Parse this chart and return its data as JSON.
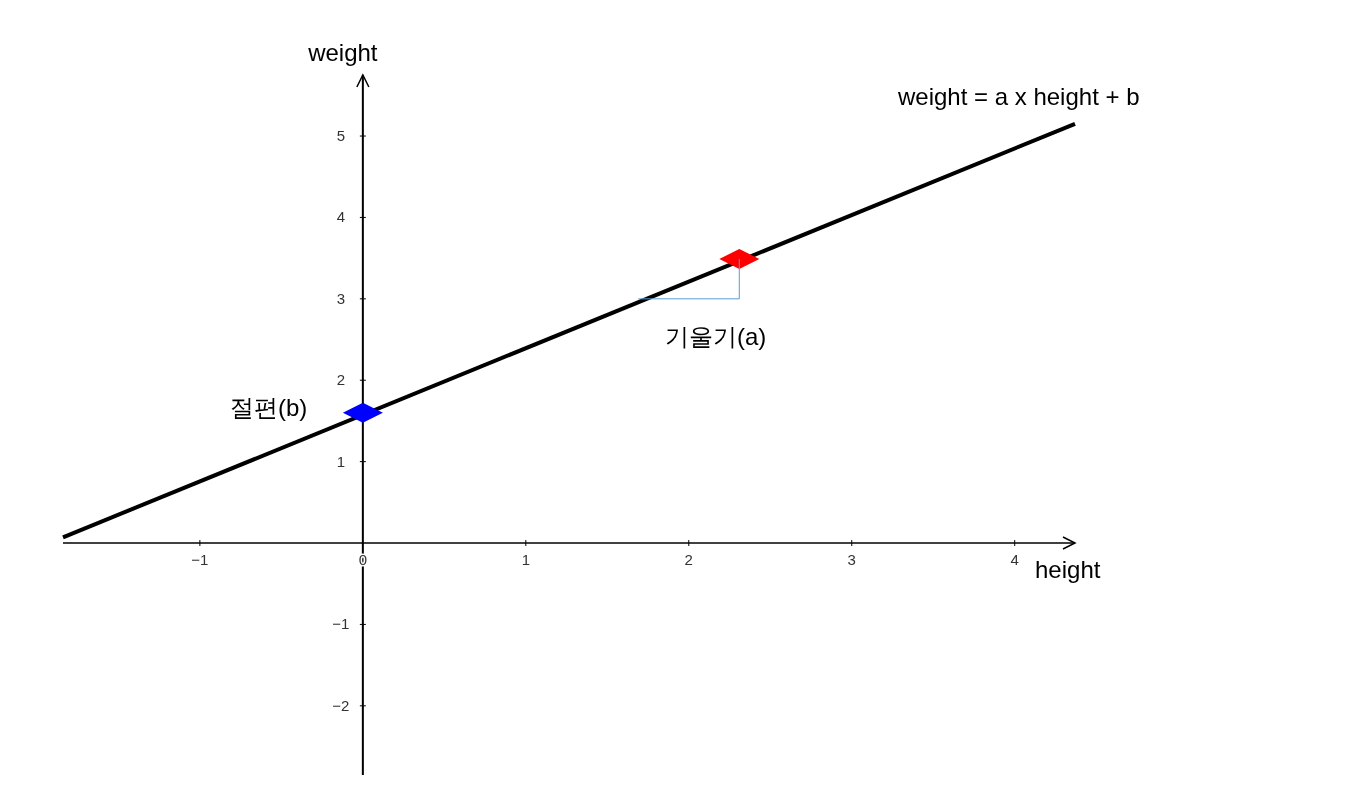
{
  "chart_data": {
    "type": "line",
    "xlabel": "height",
    "ylabel": "weight",
    "xlim": [
      -1.84,
      4.37
    ],
    "ylim": [
      -2.85,
      5.75
    ],
    "xticks": [
      {
        "value": -1,
        "label": "−1"
      },
      0,
      1,
      2,
      3,
      4
    ],
    "yticks": [
      {
        "value": -2,
        "label": "−2"
      },
      {
        "value": -1,
        "label": "−1"
      },
      1,
      2,
      3,
      4,
      5
    ],
    "grid": false,
    "series": [
      {
        "color": "#000000",
        "x": [
          -1.84,
          4.37
        ],
        "values": [
          0.07,
          5.15
        ]
      },
      {
        "type": "scatter",
        "color": "#0000ff",
        "marker": "diamond",
        "x": [
          0
        ],
        "values": [
          1.6
        ]
      },
      {
        "type": "scatter",
        "color": "#ff0000",
        "marker": "diamond",
        "x": [
          2.31
        ],
        "values": [
          3.49
        ]
      },
      {
        "type": "line",
        "color": "#5b9bd5",
        "x": [
          1.69,
          2.31,
          2.31
        ],
        "values": [
          3.0,
          3.0,
          3.49
        ]
      }
    ],
    "annotations": [
      "weight = a x height + b",
      "기울기(a)",
      "절편(b)"
    ]
  }
}
